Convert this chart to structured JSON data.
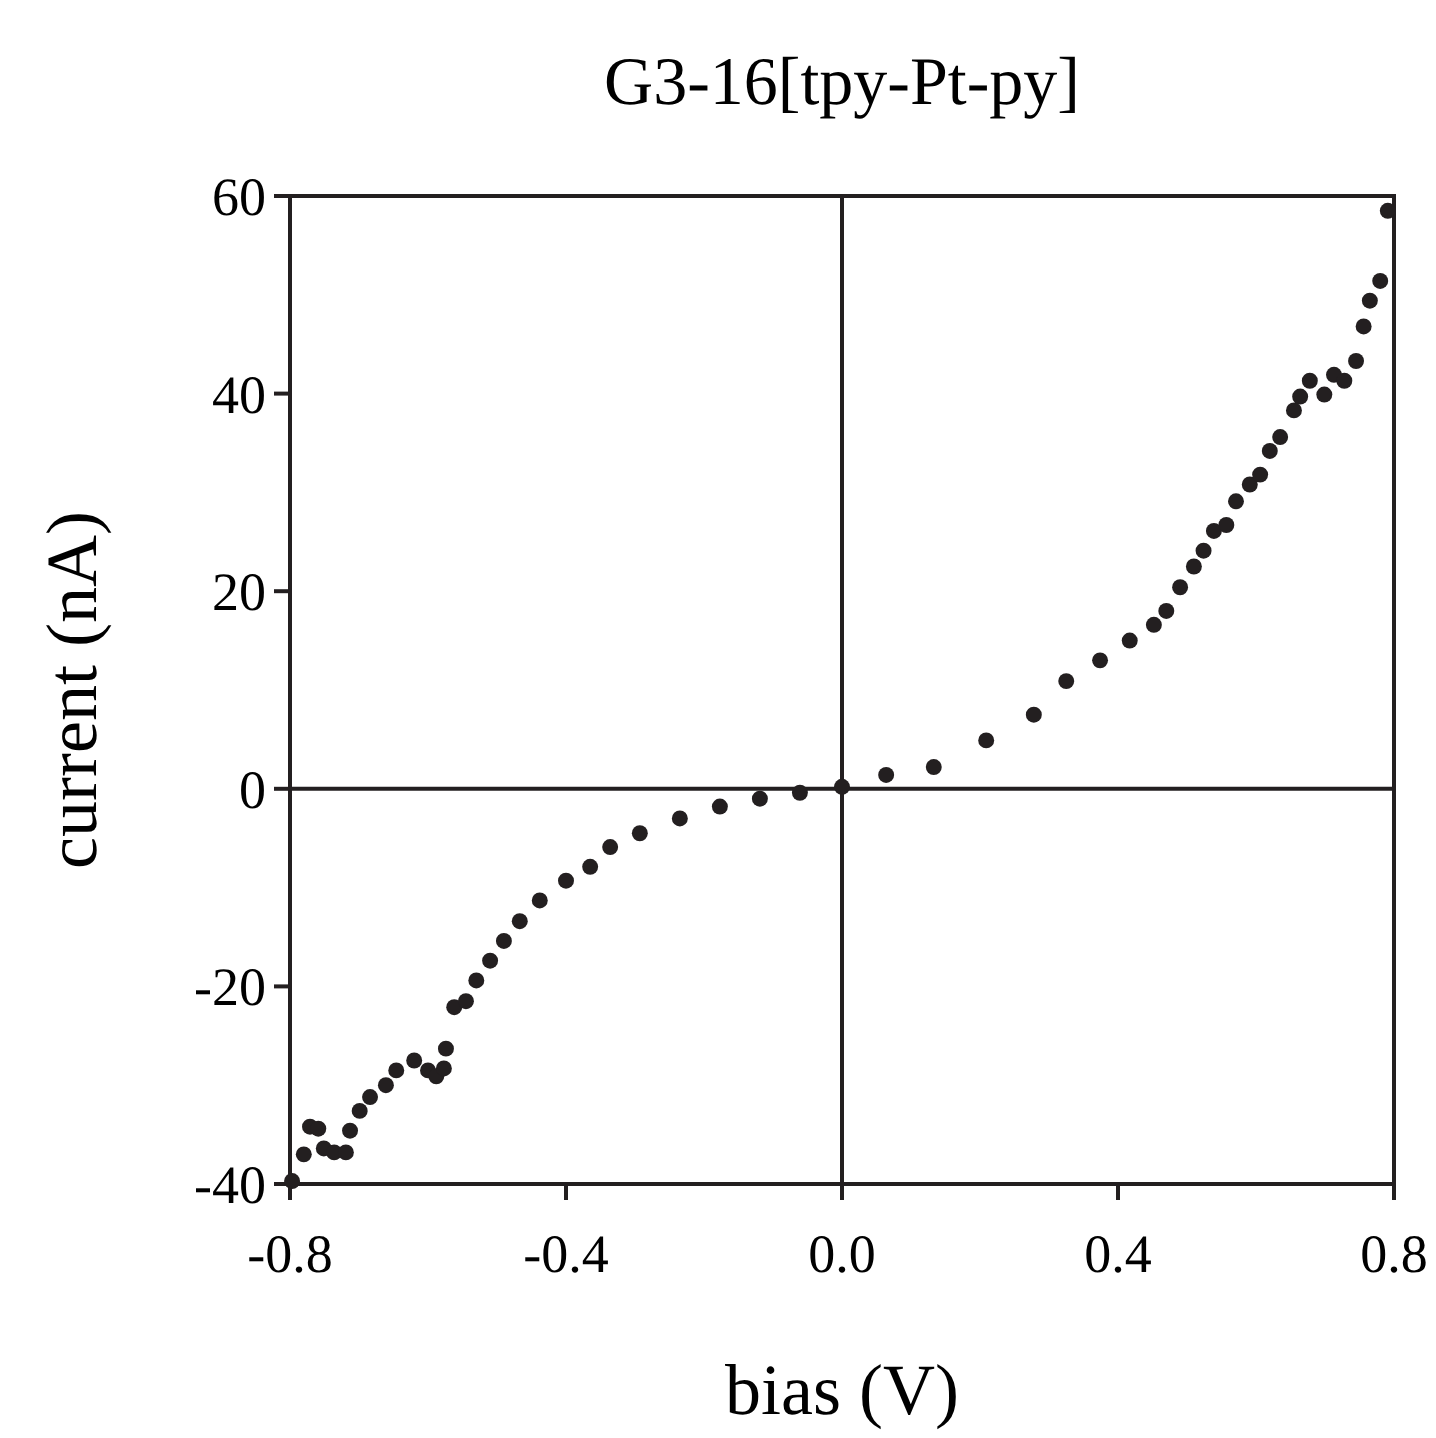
{
  "chart_data": {
    "type": "scatter",
    "title": "G3-16[tpy-Pt-py]",
    "xlabel": "bias (V)",
    "ylabel": "current (nA)",
    "xlim": [
      -0.8,
      0.8
    ],
    "xticks": [
      {
        "value": -0.8,
        "label": "-0.8"
      },
      {
        "value": -0.4,
        "label": "-0.4"
      },
      {
        "value": 0,
        "label": "0.0"
      },
      {
        "value": 0.4,
        "label": "0.4"
      },
      {
        "value": 0.8,
        "label": "0.8"
      }
    ],
    "ylim": [
      -40,
      60
    ],
    "yticks": [
      -40,
      -20,
      0,
      20,
      40,
      60
    ],
    "marker": "circle",
    "series": [
      {
        "color": "#231f20",
        "x": [
          -0.797,
          -0.78,
          -0.771,
          -0.759,
          -0.751,
          -0.736,
          -0.719,
          -0.713,
          -0.699,
          -0.684,
          -0.661,
          -0.646,
          -0.62,
          -0.6,
          -0.588,
          -0.577,
          -0.574,
          -0.562,
          -0.545,
          -0.53,
          -0.51,
          -0.49,
          -0.467,
          -0.438,
          -0.4,
          -0.365,
          -0.336,
          -0.293,
          -0.235,
          -0.177,
          -0.119,
          -0.061,
          0,
          0.064,
          0.133,
          0.209,
          0.278,
          0.325,
          0.374,
          0.417,
          0.452,
          0.47,
          0.49,
          0.51,
          0.524,
          0.539,
          0.557,
          0.571,
          0.591,
          0.606,
          0.62,
          0.635,
          0.655,
          0.664,
          0.678,
          0.699,
          0.713,
          0.728,
          0.745,
          0.756,
          0.765,
          0.78,
          0.791
        ],
        "values": [
          -39.7,
          -37,
          -34.2,
          -34.4,
          -36.4,
          -36.8,
          -36.8,
          -34.6,
          -32.6,
          -31.2,
          -30,
          -28.5,
          -27.5,
          -28.5,
          -29.1,
          -28.3,
          -26.3,
          -22.1,
          -21.5,
          -19.4,
          -17.4,
          -15.4,
          -13.4,
          -11.3,
          -9.3,
          -7.9,
          -5.9,
          -4.5,
          -3,
          -1.8,
          -1,
          -0.4,
          0.2,
          1.4,
          2.2,
          4.9,
          7.5,
          10.9,
          13,
          15,
          16.6,
          18,
          20.4,
          22.5,
          24.1,
          26.1,
          26.7,
          29.1,
          30.8,
          31.8,
          34.2,
          35.6,
          38.3,
          39.7,
          41.3,
          39.9,
          41.9,
          41.3,
          43.3,
          46.8,
          49.4,
          51.4,
          58.5
        ]
      }
    ]
  }
}
